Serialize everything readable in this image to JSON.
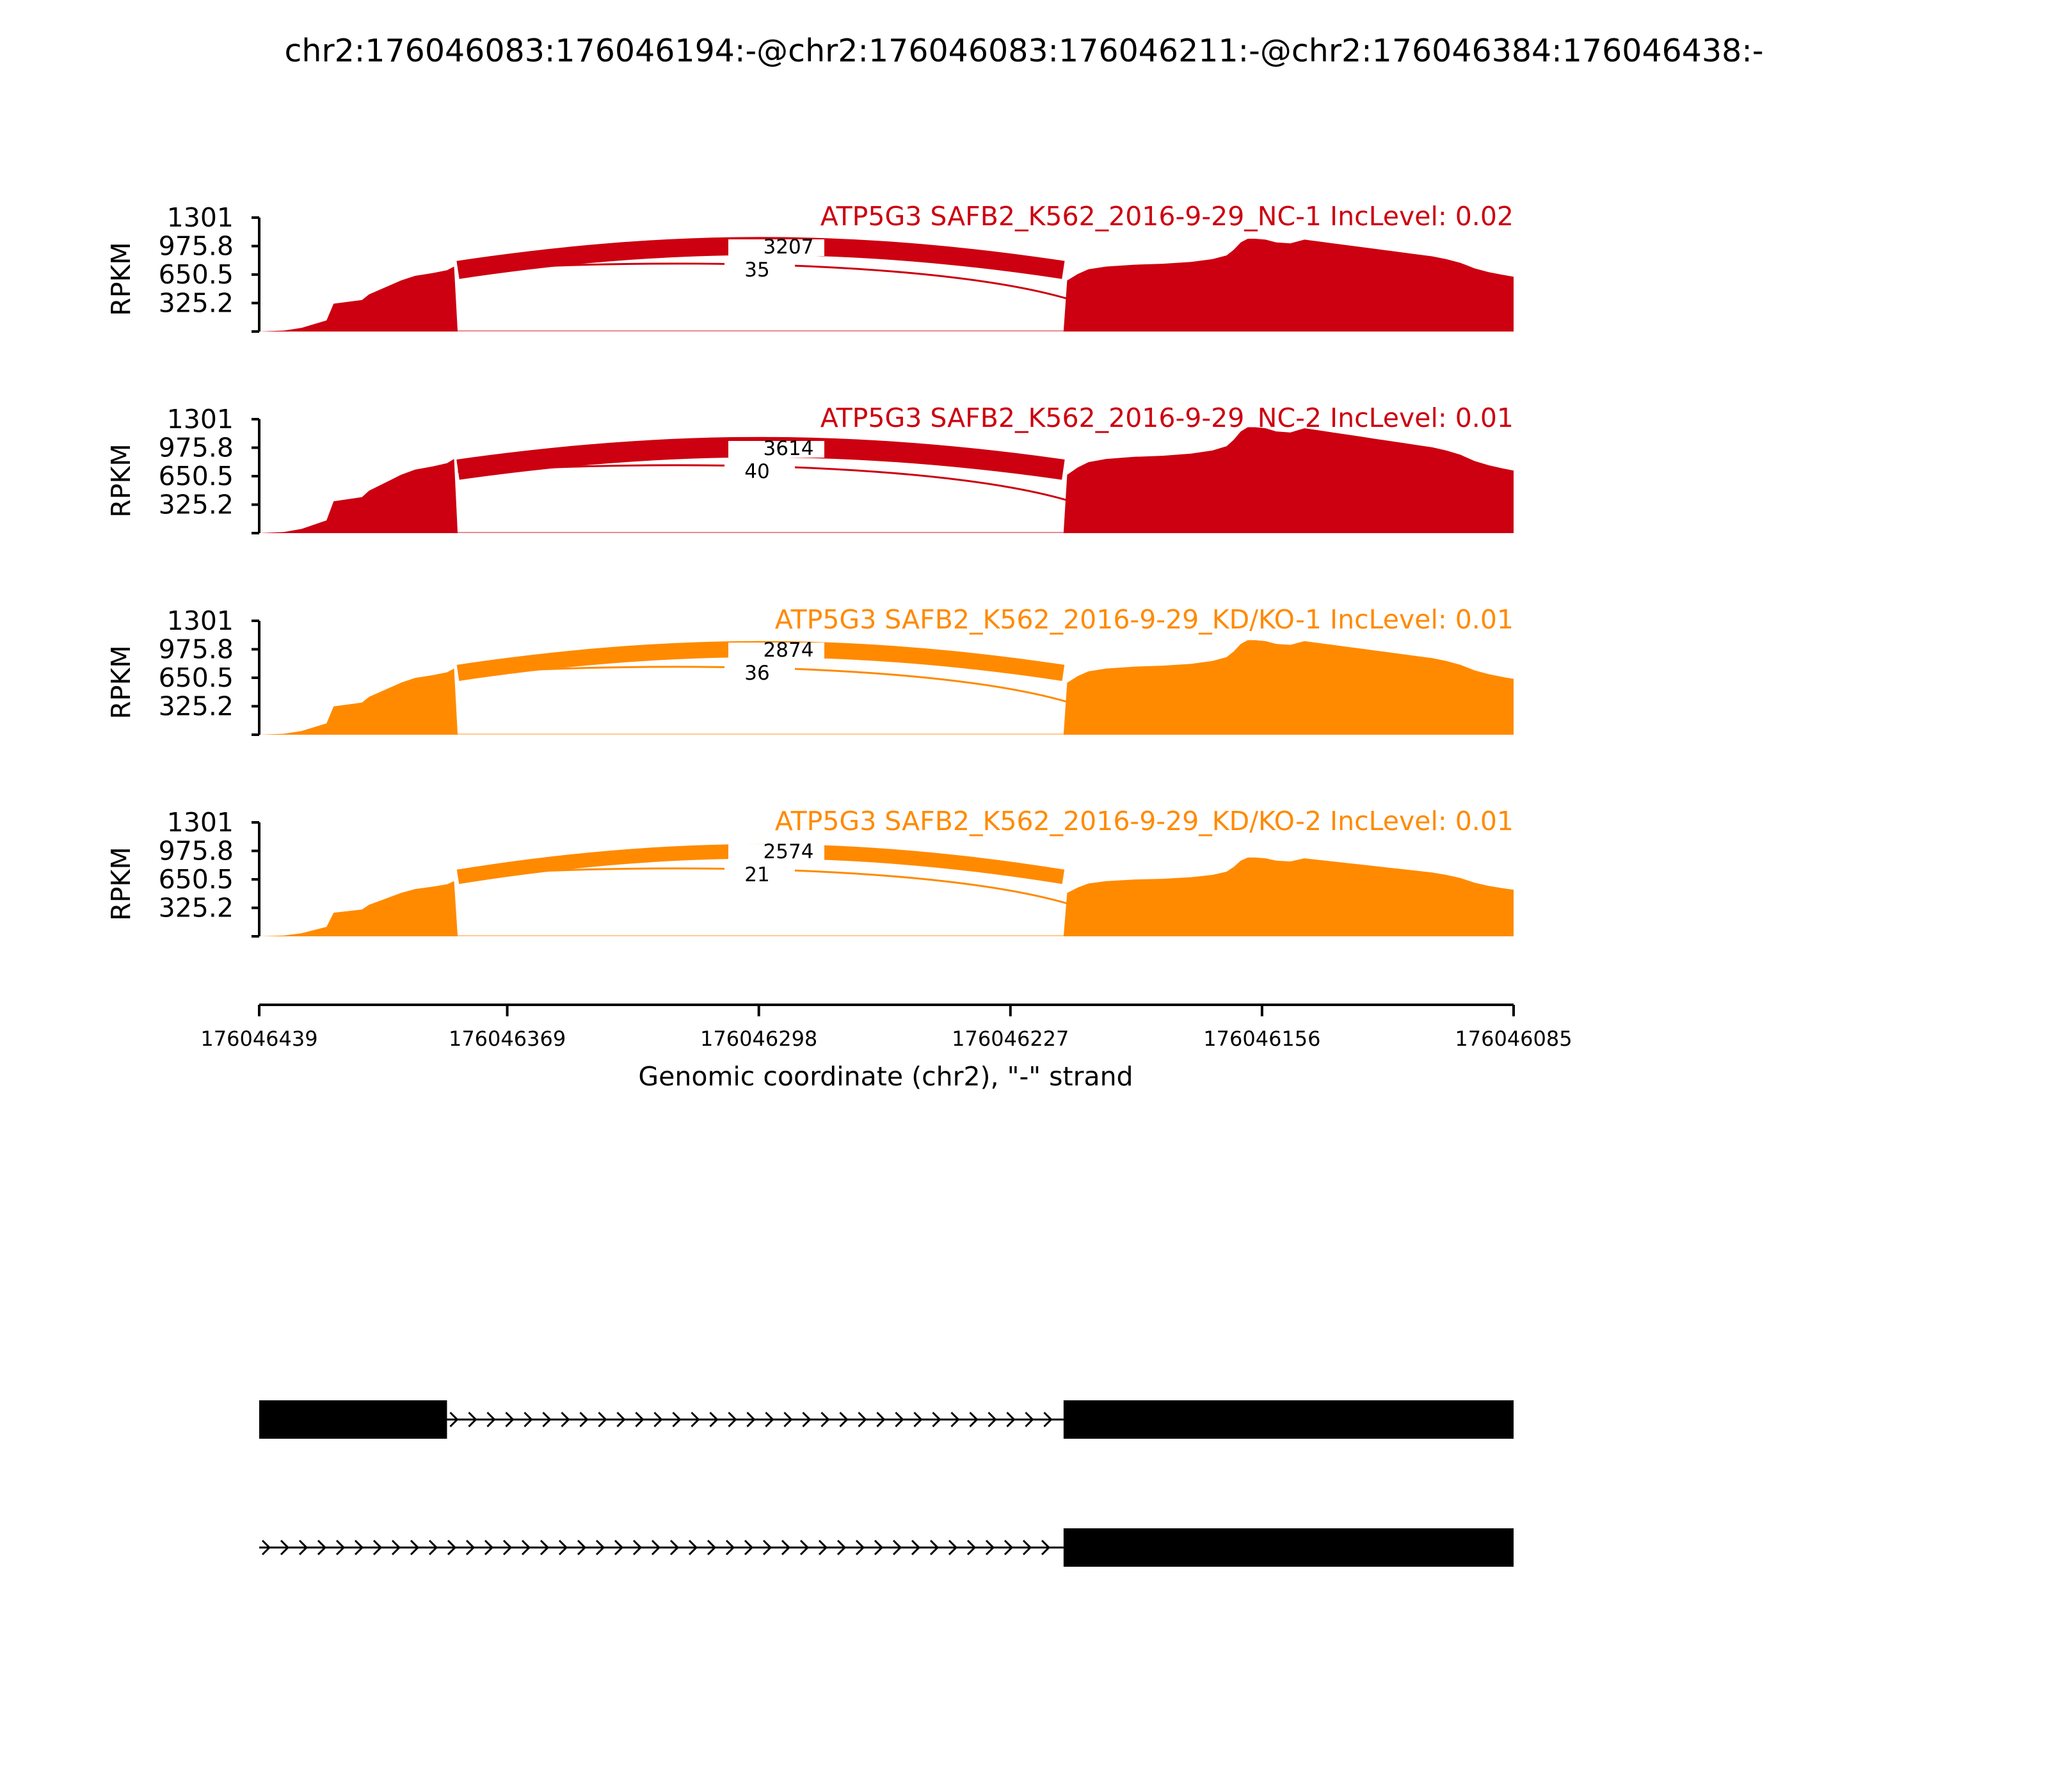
{
  "chart_data": {
    "type": "area",
    "title": "chr2:176046083:176046194:-@chr2:176046083:176046211:-@chr2:176046384:176046438:-",
    "xlabel": "Genomic coordinate (chr2), \"-\" strand",
    "ylabel": "RPKM",
    "xlim": [
      176046439,
      176046085
    ],
    "x_ticks": [
      "176046439",
      "176046369",
      "176046298",
      "176046227",
      "176046156",
      "176046085"
    ],
    "ylim": [
      0,
      1301
    ],
    "y_ticks": [
      "1301",
      "975.8",
      "650.5",
      "325.2"
    ],
    "coverage_x": [
      176046439,
      176046432,
      176046427,
      176046420,
      176046418,
      176046410,
      176046408,
      176046405,
      176046402,
      176046399,
      176046395,
      176046390,
      176046386,
      176046384,
      176046383,
      176046212,
      176046211,
      176046208,
      176046205,
      176046200,
      176046192,
      176046184,
      176046176,
      176046170,
      176046166,
      176046164,
      176046162,
      176046160,
      176046158,
      176046155,
      176046152,
      176046148,
      176046144,
      176046140,
      176046136,
      176046132,
      176046128,
      176046124,
      176046120,
      176046116,
      176046112,
      176046108,
      176046104,
      176046100,
      176046096,
      176046092,
      176046088,
      176046085
    ],
    "coverage_shape": [
      0.0,
      0.01,
      0.04,
      0.12,
      0.3,
      0.34,
      0.4,
      0.45,
      0.5,
      0.55,
      0.6,
      0.63,
      0.66,
      0.7,
      0.0,
      0.0,
      0.55,
      0.62,
      0.67,
      0.7,
      0.72,
      0.73,
      0.75,
      0.78,
      0.82,
      0.88,
      0.96,
      1.0,
      1.0,
      0.99,
      0.96,
      0.95,
      0.99,
      0.97,
      0.95,
      0.93,
      0.91,
      0.89,
      0.87,
      0.85,
      0.83,
      0.81,
      0.78,
      0.74,
      0.68,
      0.64,
      0.61,
      0.59
    ],
    "series": [
      {
        "name": "ATP5G3 SAFB2_K562_2016-9-29_NC-1 IncLevel: 0.02",
        "color": "#cc0010",
        "coverage_peak": 1060,
        "junctions": [
          {
            "from": 176046384,
            "to": 176046211,
            "count": "3207"
          },
          {
            "from": 176046384,
            "to": 176046194,
            "count": "35"
          }
        ]
      },
      {
        "name": "ATP5G3 SAFB2_K562_2016-9-29_NC-2 IncLevel: 0.01",
        "color": "#cc0010",
        "coverage_peak": 1210,
        "junctions": [
          {
            "from": 176046384,
            "to": 176046211,
            "count": "3614"
          },
          {
            "from": 176046384,
            "to": 176046194,
            "count": "40"
          }
        ]
      },
      {
        "name": "ATP5G3 SAFB2_K562_2016-9-29_KD/KO-1 IncLevel: 0.01",
        "color": "#ff8a00",
        "coverage_peak": 1080,
        "junctions": [
          {
            "from": 176046384,
            "to": 176046211,
            "count": "2874"
          },
          {
            "from": 176046384,
            "to": 176046194,
            "count": "36"
          }
        ]
      },
      {
        "name": "ATP5G3 SAFB2_K562_2016-9-29_KD/KO-2 IncLevel: 0.01",
        "color": "#ff8a00",
        "coverage_peak": 900,
        "junctions": [
          {
            "from": 176046384,
            "to": 176046211,
            "count": "2574"
          },
          {
            "from": 176046384,
            "to": 176046194,
            "count": "21"
          }
        ]
      }
    ],
    "isoforms": [
      {
        "exons": [
          [
            176046439,
            176046386
          ],
          [
            176046212,
            176046085
          ]
        ]
      },
      {
        "exons": [
          [
            176046212,
            176046085
          ]
        ]
      }
    ]
  }
}
